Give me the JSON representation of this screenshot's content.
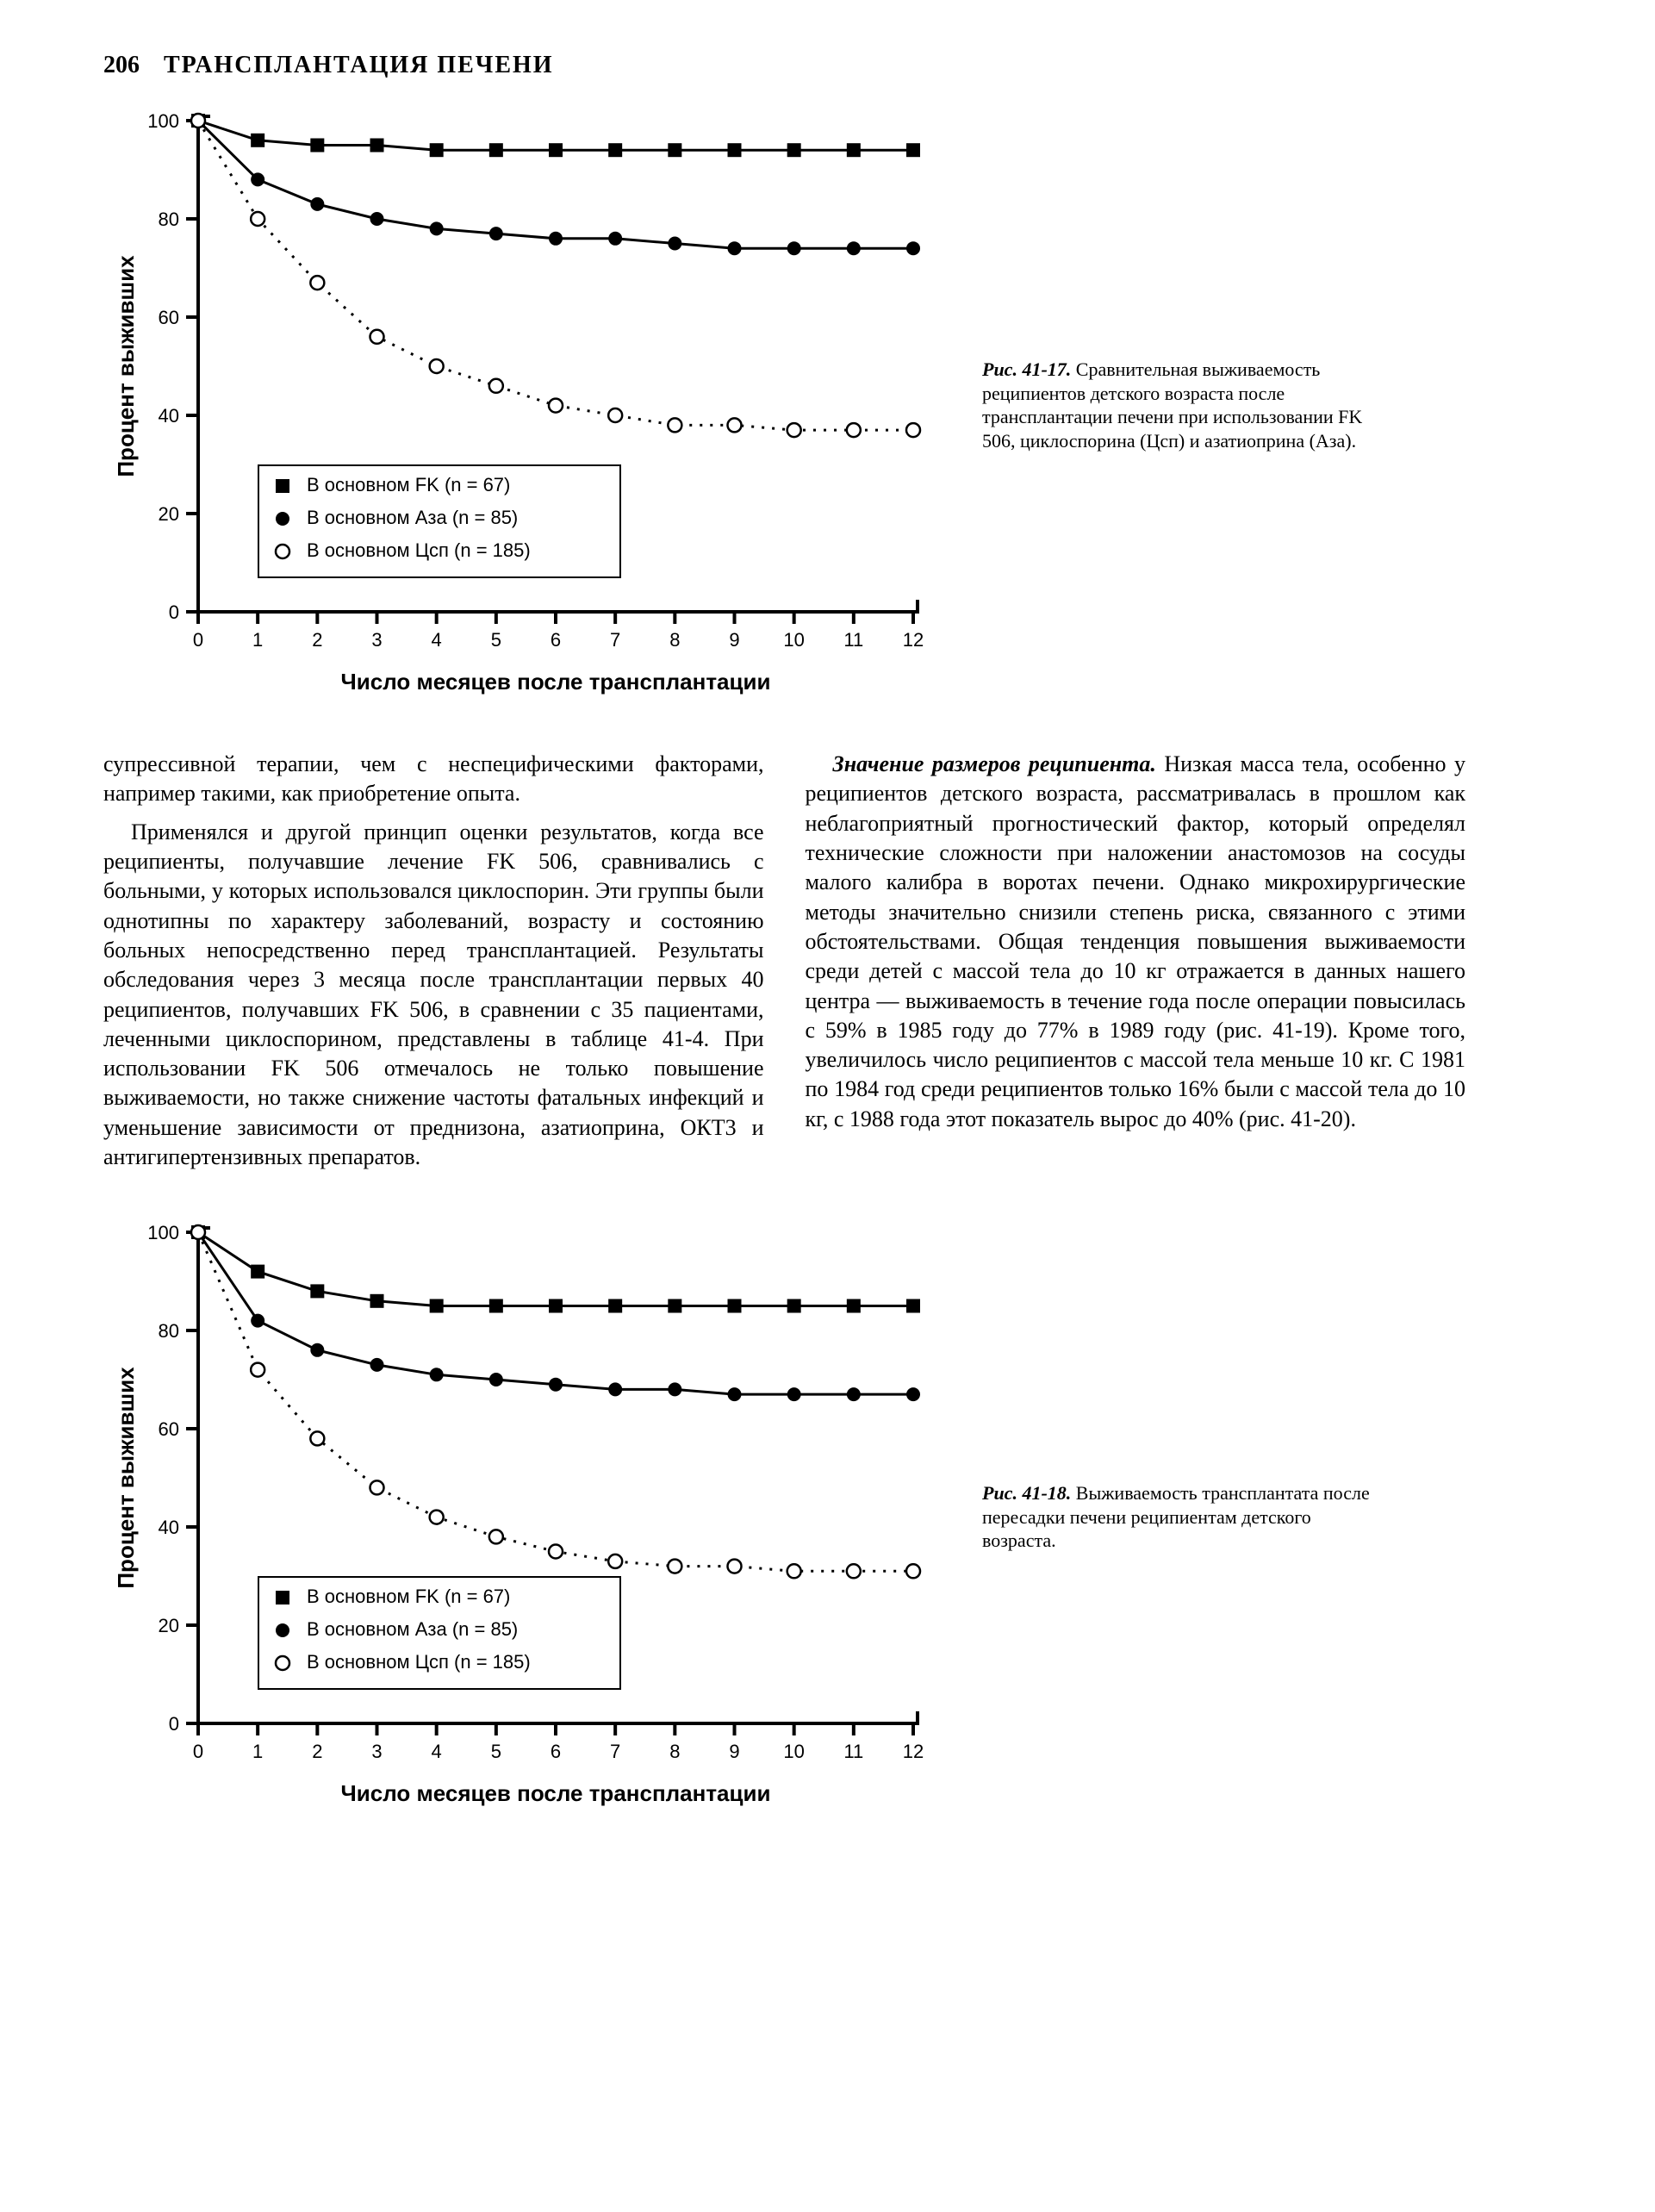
{
  "header": {
    "page_number": "206",
    "title": "ТРАНСПЛАНТАЦИЯ ПЕЧЕНИ"
  },
  "charts": {
    "type": "line",
    "x_ticks": [
      0,
      1,
      2,
      3,
      4,
      5,
      6,
      7,
      8,
      9,
      10,
      11,
      12
    ],
    "y_ticks": [
      0,
      20,
      40,
      60,
      80,
      100
    ],
    "xlim": [
      0,
      12
    ],
    "ylim": [
      0,
      100
    ],
    "x_label": "Число месяцев после трансплантации",
    "y_label": "Процент выживших",
    "background_color": "#ffffff",
    "axis_color": "#000000",
    "tick_fontsize": 22,
    "axis_title_fontsize": 26,
    "axis_title_weight": "bold",
    "line_width": 3,
    "marker_size": 8,
    "series": [
      {
        "key": "fk",
        "marker": "filled-square",
        "line_style": "solid",
        "color": "#000000",
        "legend_label": "В основном FK (n = 67)"
      },
      {
        "key": "aza",
        "marker": "filled-circle",
        "line_style": "solid",
        "color": "#000000",
        "legend_label": "В основном Аза (n = 85)"
      },
      {
        "key": "csp",
        "marker": "open-circle",
        "line_style": "dotted",
        "color": "#000000",
        "legend_label": "В основном Цсп (n = 185)"
      }
    ],
    "chart1": {
      "caption_lead": "Рис. 41-17.",
      "caption_rest": " Сравнительная выживаемость реципиентов детского возраста после трансплантации печени при использовании FK 506, циклоспорина (Цсп) и азатиоприна (Аза).",
      "fk_values": [
        100,
        96,
        95,
        95,
        94,
        94,
        94,
        94,
        94,
        94,
        94,
        94,
        94
      ],
      "aza_values": [
        100,
        88,
        83,
        80,
        78,
        77,
        76,
        76,
        75,
        74,
        74,
        74,
        74
      ],
      "csp_values": [
        100,
        80,
        67,
        56,
        50,
        46,
        42,
        40,
        38,
        38,
        37,
        37,
        37
      ]
    },
    "chart2": {
      "caption_lead": "Рис. 41-18.",
      "caption_rest": " Выживаемость трансплантата после пересадки печени реципиентам детского возраста.",
      "fk_values": [
        100,
        92,
        88,
        86,
        85,
        85,
        85,
        85,
        85,
        85,
        85,
        85,
        85
      ],
      "aza_values": [
        100,
        82,
        76,
        73,
        71,
        70,
        69,
        68,
        68,
        67,
        67,
        67,
        67
      ],
      "csp_values": [
        100,
        72,
        58,
        48,
        42,
        38,
        35,
        33,
        32,
        32,
        31,
        31,
        31
      ]
    }
  },
  "body": {
    "left": {
      "p1": "супрессивной терапии, чем с неспецифическими факторами, например такими, как приобретение опыта.",
      "p2": "Применялся и другой принцип оценки результатов, когда все реципиенты, получавшие лечение FK 506, сравнивались с больными, у которых использовался циклоспорин. Эти группы были однотипны по характеру заболеваний, возрасту и состоянию больных непосредственно перед трансплантацией. Результаты обследования через 3 месяца после трансплантации первых 40 реципиентов, получавших FK 506, в сравнении с 35 пациентами, леченными циклоспорином, представлены в таблице 41-4. При использовании FK 506 отмечалось не только повышение выживаемости, но также снижение частоты фатальных инфекций и уменьшение зависимости от преднизона, азатиоприна, ОКТ3 и антигипертензивных препаратов."
    },
    "right": {
      "lead": "Значение размеров реципиента.",
      "p1_rest": " Низкая масса тела, особенно у реципиентов детского возраста, рассматривалась в прошлом как неблагоприятный прогностический фактор, который определял технические сложности при наложении анастомозов на сосуды малого калибра в воротах печени. Однако микрохирургические методы значительно снизили степень риска, связанного с этими обстоятельствами. Общая тенденция повышения выживаемости среди детей с массой тела до 10 кг отражается в данных нашего центра — выживаемость в течение года после операции повысилась с 59% в 1985 году до 77% в 1989 году (рис. 41-19). Кроме того, увеличилось число реципиентов с массой тела меньше 10 кг. С 1981 по 1984 год среди реципиентов только 16% были с массой тела до 10 кг, с 1988 года этот показатель вырос до 40% (рис. 41-20)."
    }
  }
}
